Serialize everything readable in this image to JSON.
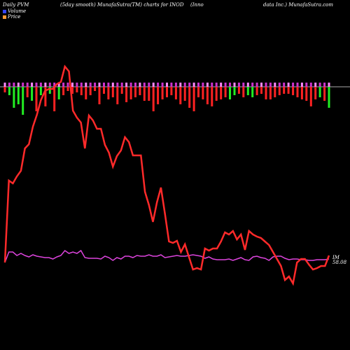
{
  "header": {
    "left": "Daily PVM",
    "center": "(5day smooth) MunafaSutra(TM) charts for INOD",
    "company": "(Inno",
    "right": "data  Inc.) MunafaSutra.com"
  },
  "chart_data": {
    "type": "line",
    "series": [
      {
        "name": "Volume",
        "bar_colors": [
          "#ff2222",
          "#22ee22"
        ],
        "values": [
          -8,
          -12,
          -30,
          -25,
          -40,
          -15,
          -20,
          -35,
          -12,
          -28,
          -10,
          -35,
          -18,
          -12,
          -6,
          -10,
          -8,
          -12,
          -18,
          -12,
          -6,
          -25,
          -10,
          -18,
          -15,
          -25,
          -10,
          -22,
          -18,
          -15,
          -12,
          -20,
          -20,
          -35,
          -25,
          -18,
          -15,
          -12,
          -18,
          -25,
          -20,
          -30,
          -35,
          -15,
          -18,
          -25,
          -28,
          -20,
          -18,
          -15,
          -18,
          -12,
          -10,
          -15,
          -12,
          -15,
          -12,
          -10,
          -18,
          -18,
          -15,
          -12,
          -10,
          -10,
          -12,
          -15,
          -18,
          -20,
          -28,
          -18,
          -15,
          -20,
          -30
        ],
        "bar_color_index": [
          0,
          1,
          1,
          1,
          1,
          0,
          1,
          0,
          1,
          0,
          1,
          0,
          1,
          0,
          0,
          0,
          0,
          0,
          0,
          0,
          0,
          0,
          0,
          0,
          0,
          0,
          0,
          0,
          0,
          0,
          0,
          0,
          0,
          0,
          0,
          0,
          0,
          0,
          0,
          0,
          0,
          0,
          0,
          0,
          0,
          0,
          0,
          0,
          0,
          0,
          1,
          1,
          0,
          0,
          1,
          1,
          0,
          0,
          0,
          0,
          0,
          0,
          0,
          0,
          0,
          0,
          0,
          0,
          0,
          0,
          1,
          0,
          1
        ]
      },
      {
        "name": "Price",
        "color": "#ff2a2a",
        "values": [
          375,
          258,
          262,
          252,
          244,
          212,
          206,
          181,
          164,
          143,
          130,
          127,
          127,
          120,
          117,
          95,
          102,
          158,
          168,
          175,
          212,
          165,
          172,
          184,
          184,
          207,
          218,
          238,
          223,
          215,
          196,
          203,
          222,
          222,
          222,
          274,
          293,
          317,
          289,
          268,
          305,
          345,
          347,
          344,
          360,
          349,
          367,
          385,
          383,
          385,
          355,
          358,
          355,
          355,
          345,
          332,
          335,
          330,
          342,
          335,
          357,
          330,
          335,
          338,
          340,
          345,
          350,
          360,
          370,
          380,
          400,
          395,
          405,
          375,
          370,
          370,
          378,
          385,
          383,
          380,
          380,
          365
        ],
        "last_label": "58.08",
        "last_prefix": "IM"
      },
      {
        "name": "PVM",
        "color": "#dd44dd",
        "values": [
          375,
          360,
          360,
          365,
          362,
          365,
          367,
          364,
          366,
          367,
          368,
          368,
          370,
          367,
          365,
          358,
          362,
          360,
          362,
          358,
          368,
          369,
          369,
          369,
          370,
          366,
          368,
          372,
          368,
          370,
          366,
          366,
          368,
          365,
          366,
          366,
          364,
          366,
          366,
          364,
          368,
          367,
          366,
          365,
          366,
          366,
          365,
          364,
          365,
          366,
          369,
          367,
          370,
          371,
          371,
          371,
          370,
          372,
          370,
          368,
          371,
          372,
          367,
          366,
          368,
          369,
          372,
          367,
          366,
          366,
          369,
          371,
          370,
          370,
          371,
          371,
          372,
          372,
          371,
          371,
          371,
          370
        ]
      }
    ],
    "grid": false
  }
}
